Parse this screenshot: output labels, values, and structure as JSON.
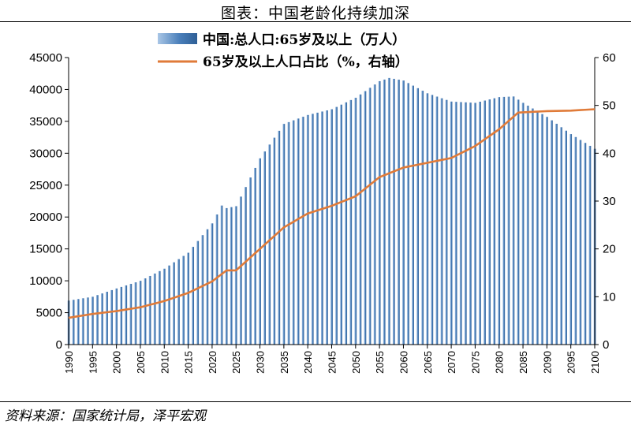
{
  "title": "图表：中国老龄化持续加深",
  "source": "资料来源：国家统计局，泽平宏观",
  "chart_data": {
    "type": "bar+line",
    "x_start": 1990,
    "x_end": 2100,
    "x_tick_labels": [
      "1990",
      "1995",
      "2000",
      "2005",
      "2010",
      "2015",
      "2020",
      "2025",
      "2030",
      "2035",
      "2040",
      "2045",
      "2050",
      "2055",
      "2060",
      "2065",
      "2070",
      "2075",
      "2080",
      "2085",
      "2090",
      "2095",
      "2100"
    ],
    "y_left": {
      "ticks": [
        0,
        5000,
        10000,
        15000,
        20000,
        25000,
        30000,
        35000,
        40000,
        45000
      ],
      "labels": [
        "0",
        "5000",
        "10000",
        "15000",
        "20000",
        "25000",
        "30000",
        "35000",
        "40000",
        "45000"
      ],
      "ylim": [
        0,
        45000
      ]
    },
    "y_right": {
      "ticks": [
        0,
        10,
        20,
        30,
        40,
        50,
        60
      ],
      "labels": [
        "0",
        "10",
        "20",
        "30",
        "40",
        "50",
        "60"
      ],
      "ylim": [
        0,
        60
      ]
    },
    "series": [
      {
        "name": "中国:总人口:65岁及以上（万人）",
        "type": "bar",
        "axis": "left",
        "color": "#4a7fba",
        "anchor_years": [
          1990,
          1995,
          2000,
          2005,
          2010,
          2015,
          2020,
          2022,
          2023,
          2025,
          2030,
          2035,
          2040,
          2045,
          2050,
          2055,
          2057,
          2060,
          2065,
          2070,
          2075,
          2080,
          2083,
          2085,
          2090,
          2095,
          2100
        ],
        "anchor_values": [
          6900,
          7500,
          8800,
          10000,
          11900,
          14400,
          19000,
          21800,
          21400,
          21700,
          29200,
          34600,
          36000,
          36900,
          38700,
          41300,
          41800,
          41400,
          39400,
          38100,
          37900,
          38800,
          38900,
          37900,
          35700,
          33000,
          30700
        ]
      },
      {
        "name": "65岁及以上人口占比（%，右轴）",
        "type": "line",
        "axis": "right",
        "color": "#e07b39",
        "anchor_years": [
          1990,
          1995,
          2000,
          2005,
          2010,
          2015,
          2020,
          2023,
          2025,
          2030,
          2035,
          2040,
          2045,
          2050,
          2055,
          2060,
          2065,
          2070,
          2075,
          2080,
          2084,
          2090,
          2095,
          2100
        ],
        "anchor_values": [
          5.6,
          6.4,
          7.0,
          7.8,
          9.1,
          10.8,
          13.2,
          15.5,
          15.5,
          20.0,
          24.5,
          27.4,
          29.0,
          31.0,
          35.0,
          37.0,
          38.0,
          39.0,
          41.5,
          45.0,
          48.5,
          48.8,
          48.9,
          49.2
        ]
      }
    ]
  }
}
